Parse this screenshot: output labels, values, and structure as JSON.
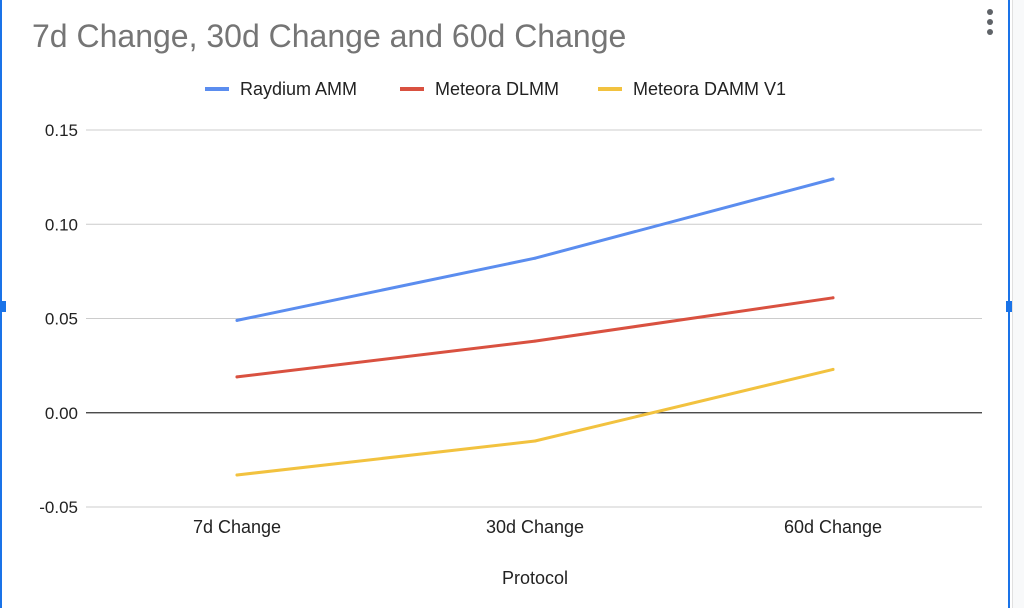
{
  "chart_data": {
    "type": "line",
    "title": "7d Change, 30d Change and 60d Change",
    "xlabel": "Protocol",
    "ylabel": "",
    "categories": [
      "7d Change",
      "30d Change",
      "60d Change"
    ],
    "ylim": [
      -0.05,
      0.15
    ],
    "y_ticks": [
      0.15,
      0.1,
      0.05,
      0.0,
      -0.05
    ],
    "y_tick_labels": [
      "0.15",
      "0.10",
      "0.05",
      "0.00",
      "-0.05"
    ],
    "grid": true,
    "legend_position": "top",
    "series": [
      {
        "name": "Raydium AMM",
        "color": "#5b8def",
        "values": [
          0.049,
          0.082,
          0.124
        ]
      },
      {
        "name": "Meteora DLMM",
        "color": "#d95140",
        "values": [
          0.019,
          0.038,
          0.061
        ]
      },
      {
        "name": "Meteora DAMM V1",
        "color": "#f2c23f",
        "values": [
          -0.033,
          -0.015,
          0.023
        ]
      }
    ]
  },
  "menu_icon": "more-vert-icon"
}
